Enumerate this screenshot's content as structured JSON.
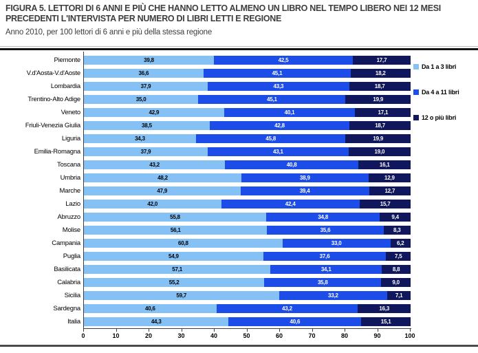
{
  "chart_data": {
    "type": "bar",
    "orientation": "horizontal",
    "stacked": true,
    "title": "FIGURA 5. LETTORI DI 6 ANNI E PIÙ CHE HANNO LETTO ALMENO UN LIBRO NEL TEMPO LIBERO NEI 12 MESI PRECEDENTI L'INTERVISTA PER NUMERO DI LIBRI LETTI E REGIONE",
    "subtitle": "Anno 2010, per 100 lettori di 6 anni e più della stessa regione",
    "categories": [
      "Piemonte",
      "V.d'Aosta-V.d'Aoste",
      "Lombardia",
      "Trentino-Alto Adige",
      "Veneto",
      "Friuli-Venezia Giulia",
      "Liguria",
      "Emilia-Romagna",
      "Toscana",
      "Umbria",
      "Marche",
      "Lazio",
      "Abruzzo",
      "Molise",
      "Campania",
      "Puglia",
      "Basilicata",
      "Calabria",
      "Sicilia",
      "Sardegna",
      "Italia"
    ],
    "series": [
      {
        "name": "Da 1 a 3 libri",
        "color": "#85C1F5",
        "label_color": "#000000",
        "values": [
          39.8,
          36.6,
          37.9,
          35.0,
          42.9,
          38.5,
          34.3,
          37.9,
          43.2,
          48.2,
          47.9,
          42.0,
          55.8,
          56.1,
          60.8,
          54.9,
          57.1,
          55.2,
          59.7,
          40.6,
          44.3
        ]
      },
      {
        "name": "Da 4 a 11 libri",
        "color": "#1C4DE8",
        "label_color": "#FFFFFF",
        "values": [
          42.5,
          45.1,
          43.3,
          45.1,
          40.1,
          42.8,
          45.8,
          43.1,
          40.8,
          38.9,
          39.4,
          42.4,
          34.8,
          35.6,
          33.0,
          37.6,
          34.1,
          35.8,
          33.2,
          43.2,
          40.6
        ]
      },
      {
        "name": "12 o più libri",
        "color": "#11175C",
        "label_color": "#FFFFFF",
        "values": [
          17.7,
          18.2,
          18.7,
          19.9,
          17.1,
          18.7,
          19.9,
          19.0,
          16.1,
          12.9,
          12.7,
          15.7,
          9.4,
          8.3,
          6.2,
          7.5,
          8.8,
          9.0,
          7.1,
          16.3,
          15.1
        ]
      }
    ],
    "xlim": [
      0,
      100
    ],
    "x_ticks": [
      0,
      10,
      20,
      30,
      40,
      50,
      60,
      70,
      80,
      90,
      100
    ],
    "value_label_format": "comma-decimal-1",
    "legend_position": "right",
    "grid": false
  }
}
